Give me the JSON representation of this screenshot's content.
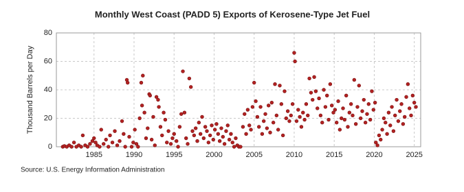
{
  "chart_data": {
    "type": "scatter",
    "title": "Monthly West Coast (PADD 5) Exports of Kerosene-Type Jet Fuel",
    "y_label": "Thousand Barrels per Day",
    "source": "Source: U.S. Energy Information Administration",
    "color": "#b22222",
    "grid": true,
    "xlim": [
      1980.3,
      2025.8
    ],
    "ylim": [
      0,
      80
    ],
    "xticks": [
      1985,
      1990,
      1995,
      2000,
      2005,
      2010,
      2015,
      2020,
      2025
    ],
    "yticks": [
      0,
      20,
      40,
      60,
      80
    ],
    "x": [
      1981.1,
      1981.3,
      1981.6,
      1981.9,
      1982.2,
      1982.5,
      1982.8,
      1983.1,
      1983.4,
      1983.6,
      1983.9,
      1984.2,
      1984.5,
      1984.8,
      1985.0,
      1985.2,
      1985.4,
      1985.7,
      1985.9,
      1986.2,
      1986.5,
      1986.8,
      1987.0,
      1987.3,
      1987.6,
      1987.9,
      1988.2,
      1988.5,
      1988.7,
      1988.9,
      1989.1,
      1989.2,
      1989.4,
      1989.7,
      1989.9,
      1990.1,
      1990.3,
      1990.5,
      1990.7,
      1990.9,
      1991.0,
      1991.1,
      1991.3,
      1991.5,
      1991.7,
      1991.9,
      1992.0,
      1992.2,
      1992.4,
      1992.6,
      1992.8,
      1993.0,
      1993.1,
      1993.3,
      1993.5,
      1993.7,
      1993.9,
      1994.1,
      1994.3,
      1994.6,
      1994.8,
      1995.0,
      1995.3,
      1995.5,
      1995.7,
      1995.9,
      1996.1,
      1996.3,
      1996.5,
      1996.7,
      1996.9,
      1997.1,
      1997.3,
      1997.5,
      1997.7,
      1997.9,
      1998.1,
      1998.3,
      1998.5,
      1998.7,
      1998.9,
      1999.1,
      1999.3,
      1999.5,
      1999.7,
      1999.9,
      2000.1,
      2000.3,
      2000.5,
      2000.7,
      2000.9,
      2001.1,
      2001.3,
      2001.5,
      2001.7,
      2001.9,
      2002.1,
      2002.3,
      2002.5,
      2002.7,
      2002.9,
      2003.1,
      2003.3,
      2003.6,
      2003.8,
      2004.0,
      2004.2,
      2004.4,
      2004.6,
      2004.8,
      2005.0,
      2005.2,
      2005.4,
      2005.6,
      2005.8,
      2006.0,
      2006.2,
      2006.4,
      2006.6,
      2006.8,
      2007.0,
      2007.2,
      2007.4,
      2007.6,
      2007.8,
      2008.0,
      2008.2,
      2008.4,
      2008.6,
      2008.8,
      2009.0,
      2009.2,
      2009.4,
      2009.6,
      2009.8,
      2010.0,
      2010.1,
      2010.3,
      2010.5,
      2010.7,
      2010.9,
      2011.1,
      2011.3,
      2011.5,
      2011.7,
      2011.9,
      2012.1,
      2012.3,
      2012.5,
      2012.7,
      2012.9,
      2013.1,
      2013.3,
      2013.5,
      2013.7,
      2013.9,
      2014.1,
      2014.3,
      2014.5,
      2014.7,
      2014.9,
      2015.1,
      2015.3,
      2015.5,
      2015.7,
      2015.9,
      2016.1,
      2016.3,
      2016.5,
      2016.7,
      2016.9,
      2017.1,
      2017.3,
      2017.5,
      2017.7,
      2017.9,
      2018.1,
      2018.3,
      2018.5,
      2018.7,
      2018.9,
      2019.1,
      2019.3,
      2019.5,
      2019.7,
      2019.9,
      2020.1,
      2020.2,
      2020.4,
      2020.6,
      2020.8,
      2021.0,
      2021.2,
      2021.4,
      2021.6,
      2021.8,
      2022.0,
      2022.2,
      2022.4,
      2022.6,
      2022.8,
      2023.0,
      2023.2,
      2023.4,
      2023.6,
      2023.8,
      2024.0,
      2024.2,
      2024.4,
      2024.6,
      2024.8,
      2025.0,
      2025.2
    ],
    "values": [
      0,
      0.5,
      0,
      1,
      0,
      3,
      0,
      1,
      0,
      8,
      1,
      0,
      2,
      4,
      6,
      3,
      1,
      0,
      12,
      2,
      5,
      0,
      8,
      3,
      11,
      1,
      4,
      18,
      9,
      0,
      47,
      45,
      7,
      0,
      3,
      12,
      2,
      0,
      20,
      45,
      29,
      50,
      24,
      6,
      13,
      37,
      36,
      5,
      21,
      1,
      35,
      33,
      28,
      14,
      8,
      24,
      19,
      3,
      11,
      2,
      6,
      9,
      4,
      0,
      14,
      23,
      53,
      24,
      6,
      2,
      48,
      42,
      11,
      8,
      13,
      4,
      17,
      9,
      21,
      6,
      14,
      11,
      3,
      8,
      15,
      5,
      12,
      16,
      9,
      4,
      13,
      7,
      2,
      11,
      15,
      5,
      9,
      3,
      0,
      6,
      1,
      0,
      0,
      14,
      23,
      9,
      26,
      15,
      12,
      28,
      45,
      32,
      21,
      14,
      28,
      9,
      18,
      23,
      13,
      29,
      10,
      31,
      17,
      44,
      22,
      12,
      43,
      30,
      8,
      39,
      20,
      25,
      18,
      22,
      30,
      66,
      60,
      18,
      26,
      21,
      14,
      24,
      19,
      30,
      22,
      48,
      38,
      33,
      49,
      39,
      27,
      34,
      22,
      17,
      40,
      28,
      36,
      19,
      44,
      29,
      24,
      26,
      17,
      32,
      12,
      20,
      27,
      19,
      36,
      14,
      24,
      30,
      22,
      47,
      16,
      28,
      43,
      20,
      25,
      33,
      17,
      23,
      30,
      19,
      39,
      26,
      31,
      3,
      1,
      8,
      5,
      12,
      20,
      17,
      9,
      24,
      15,
      28,
      11,
      22,
      33,
      18,
      25,
      30,
      16,
      21,
      35,
      44,
      27,
      22,
      36,
      31,
      28
    ]
  }
}
